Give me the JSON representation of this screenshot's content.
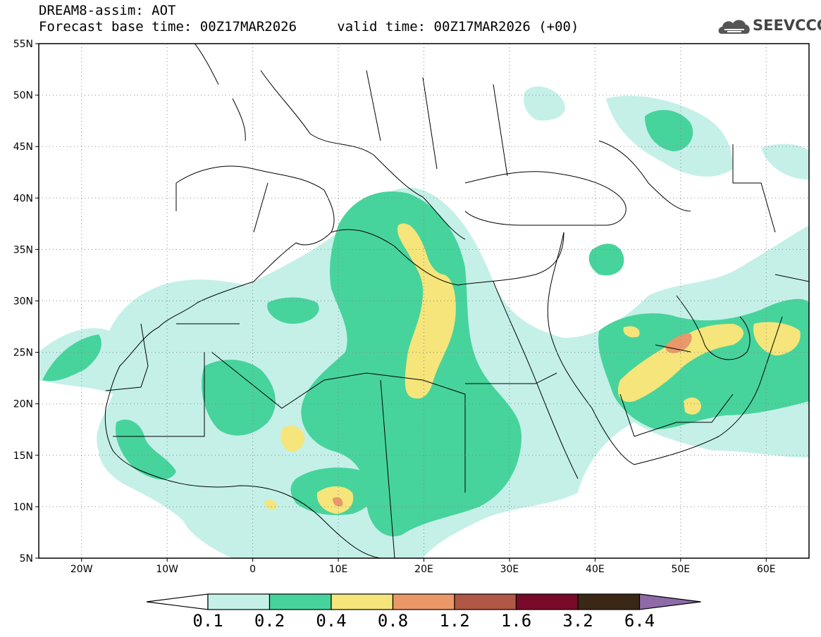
{
  "header": {
    "title": "DREAM8-assim: AOT",
    "base_time": "Forecast base time: 00Z17MAR2026",
    "valid_time": "valid time: 00Z17MAR2026 (+00)",
    "logo_text": "SEEVCCC"
  },
  "map": {
    "lon_range": [
      -25,
      65
    ],
    "lat_range": [
      5,
      55
    ],
    "lat_labels": [
      "55N",
      "50N",
      "45N",
      "40N",
      "35N",
      "30N",
      "25N",
      "20N",
      "15N",
      "10N",
      "5N"
    ],
    "lon_labels": [
      "20W",
      "10W",
      "0",
      "10E",
      "20E",
      "30E",
      "40E",
      "50E",
      "60E"
    ],
    "grid": true
  },
  "colorbar": {
    "labels": [
      "0.1",
      "0.2",
      "0.4",
      "0.8",
      "1.2",
      "1.6",
      "3.2",
      "6.4"
    ],
    "colors": [
      "#ffffff",
      "#c4f0e8",
      "#47d39c",
      "#f5e57a",
      "#ea9868",
      "#b05745",
      "#7a0a2a",
      "#3a2716",
      "#8f6aa8"
    ]
  },
  "icons": {
    "logo": "cloud-logo-icon"
  }
}
